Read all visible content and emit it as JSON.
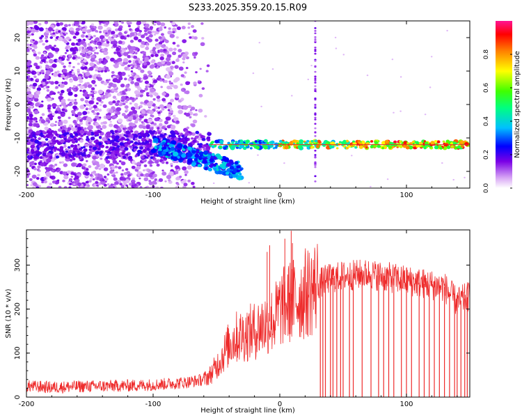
{
  "title": "S233.2025.359.20.15.R09",
  "chart_data": [
    {
      "type": "heatmap",
      "xlabel": "Height of straight line (km)",
      "ylabel": "Frequency (Hz)",
      "xlim": [
        -200,
        150
      ],
      "ylim": [
        -25,
        25
      ],
      "xticks": [
        -200,
        -100,
        0,
        100
      ],
      "yticks": [
        -20,
        -10,
        0,
        10,
        20
      ],
      "colorbar": {
        "label": "Normalized spectral amplitude",
        "range": [
          0.0,
          1.0
        ],
        "ticks": [
          0.0,
          0.2,
          0.4,
          0.6,
          0.8
        ],
        "tick_labels": [
          "0.0",
          "0.2",
          "0.4",
          "0.6",
          "0.8"
        ]
      },
      "features": {
        "noise_region_x": [
          -200,
          -55
        ],
        "dense_noise_x": [
          -200,
          -100
        ],
        "descending_arc": {
          "x": [
            -100,
            -30
          ],
          "y": [
            -12,
            -20
          ]
        },
        "tone_line": {
          "y": -12,
          "x": [
            -55,
            150
          ]
        },
        "strong_segment_x": [
          60,
          150
        ],
        "vertical_spike_x": 28
      }
    },
    {
      "type": "line",
      "xlabel": "Height of straight line (km)",
      "ylabel": "SNR (10 * v/v)",
      "xlim": [
        -200,
        150
      ],
      "ylim": [
        0,
        380
      ],
      "xticks": [
        -200,
        -100,
        0,
        100
      ],
      "yticks": [
        0,
        100,
        200,
        300
      ],
      "color": "#ee2b2b",
      "series": [
        {
          "name": "SNR",
          "x": [
            -200,
            -180,
            -160,
            -140,
            -120,
            -100,
            -90,
            -80,
            -70,
            -60,
            -55,
            -50,
            -45,
            -40,
            -35,
            -30,
            -25,
            -20,
            -15,
            -10,
            -5,
            0,
            5,
            10,
            15,
            20,
            25,
            30,
            35,
            40,
            50,
            60,
            70,
            80,
            90,
            100,
            110,
            120,
            130,
            140,
            150
          ],
          "values": [
            25,
            22,
            24,
            25,
            26,
            28,
            30,
            32,
            35,
            40,
            50,
            70,
            95,
            120,
            135,
            140,
            145,
            150,
            160,
            170,
            175,
            200,
            210,
            220,
            225,
            235,
            245,
            255,
            265,
            270,
            275,
            278,
            280,
            275,
            270,
            265,
            260,
            255,
            250,
            215,
            230
          ]
        }
      ],
      "dropouts_x": [
        32,
        34,
        36,
        40,
        42,
        45,
        48,
        50,
        55,
        58,
        65,
        72,
        78,
        82,
        86,
        90,
        96,
        100,
        104,
        110,
        114,
        118,
        122,
        126,
        130,
        134,
        138,
        140,
        143,
        146,
        148
      ],
      "spikes": [
        {
          "x": 9,
          "value": 378
        },
        {
          "x": 4,
          "value": 360
        },
        {
          "x": -8,
          "value": 345
        },
        {
          "x": -10,
          "value": 330
        },
        {
          "x": 10,
          "value": 350
        }
      ]
    }
  ]
}
